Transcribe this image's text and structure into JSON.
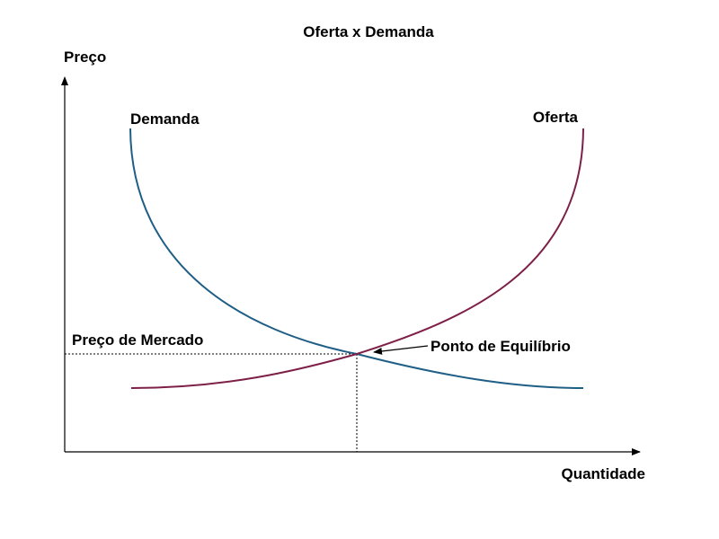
{
  "title": "Oferta x Demanda",
  "axes": {
    "y_label": "Preço",
    "x_label": "Quantidade"
  },
  "curves": {
    "demand_label": "Demanda",
    "supply_label": "Oferta"
  },
  "annotations": {
    "market_price": "Preço de Mercado",
    "equilibrium": "Ponto de Equilíbrio"
  },
  "colors": {
    "demand": "#1f5f86",
    "supply": "#7d1f47",
    "axes": "#000000",
    "guide": "#000000"
  }
}
